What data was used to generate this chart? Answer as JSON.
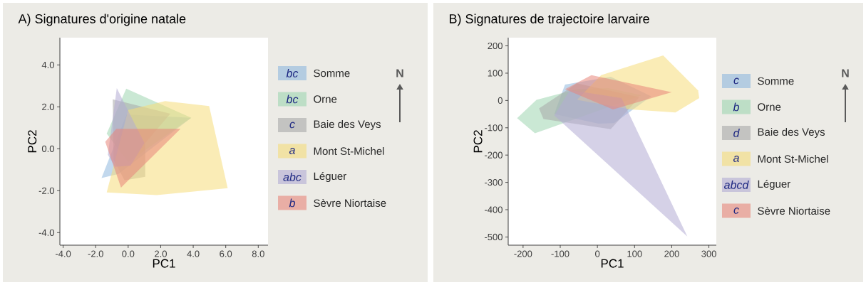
{
  "chart_data": [
    {
      "type": "area",
      "title": "A) Signatures d'origine natale",
      "xlabel": "PC1",
      "ylabel": "PC2",
      "legend": "right",
      "xlim": [
        -4.2,
        8.6
      ],
      "ylim": [
        -4.6,
        5.3
      ],
      "xticks": [
        {
          "value": -4,
          "label": "-4.0"
        },
        {
          "value": -2,
          "label": "-2.0"
        },
        {
          "value": 0,
          "label": "0.0"
        },
        {
          "value": 2,
          "label": "2.0"
        },
        {
          "value": 4,
          "label": "4.0"
        },
        {
          "value": 6,
          "label": "6.0"
        },
        {
          "value": 8,
          "label": "8.0"
        }
      ],
      "yticks": [
        {
          "value": -4,
          "label": "-4.0"
        },
        {
          "value": -2,
          "label": "-2.0"
        },
        {
          "value": 0,
          "label": "0.0"
        },
        {
          "value": 2,
          "label": "2.0"
        },
        {
          "value": 4,
          "label": "4.0"
        }
      ],
      "series": [
        {
          "name": "Somme",
          "color": "#8fb8de",
          "x": [
            -1.64,
            -0.1,
            3.88,
            -0.59
          ],
          "values": [
            -1.4,
            1.63,
            1.48,
            -1.2
          ]
        },
        {
          "name": "Orne",
          "color": "#9fd6b0",
          "x": [
            -0.12,
            3.88,
            0.0,
            -1.32
          ],
          "values": [
            2.87,
            1.48,
            -0.63,
            0.72
          ]
        },
        {
          "name": "Baie des Veys",
          "color": "#a8a8a8",
          "x": [
            -0.95,
            2.59,
            1.05,
            1.05,
            -0.22,
            -0.9
          ],
          "values": [
            2.36,
            1.67,
            0.27,
            -1.34,
            -1.51,
            -0.52
          ]
        },
        {
          "name": "Mont St-Michel",
          "color": "#f5dc7a",
          "x": [
            -1.32,
            1.76,
            6.12,
            4.98,
            2.27,
            0.0
          ],
          "values": [
            -2.08,
            -2.21,
            -1.88,
            2.04,
            2.27,
            1.85
          ]
        },
        {
          "name": "Léguer",
          "color": "#b3acd4",
          "x": [
            -0.7,
            1.0,
            0.15,
            -0.81,
            -1.25
          ],
          "values": [
            2.89,
            0.27,
            -0.8,
            -0.86,
            -0.29
          ]
        },
        {
          "name": "Sèvre Niortaise",
          "color": "#e8857a",
          "x": [
            -1.41,
            -0.73,
            3.22,
            -0.44
          ],
          "values": [
            0.33,
            0.95,
            0.95,
            -1.85
          ]
        }
      ],
      "annotations": [
        "bc",
        "bc",
        "c",
        "a",
        "abc",
        "b",
        "N"
      ]
    },
    {
      "type": "area",
      "title": "B) Signatures de trajectoire larvaire",
      "xlabel": "PC1",
      "ylabel": "PC2",
      "legend": "right",
      "xlim": [
        -240,
        320
      ],
      "ylim": [
        -530,
        230
      ],
      "xticks": [
        -200,
        -100,
        0,
        100,
        200,
        300
      ],
      "yticks": [
        -500,
        -400,
        -300,
        -200,
        -100,
        0,
        100,
        200
      ],
      "series": [
        {
          "name": "Somme",
          "color": "#8fb8de",
          "x": [
            -87,
            36,
            145,
            45,
            3,
            -116,
            -93
          ],
          "values": [
            58,
            87,
            15,
            -83,
            -85,
            -50,
            37
          ]
        },
        {
          "name": "Orne",
          "color": "#9fd6b0",
          "x": [
            -216,
            -164,
            -55,
            29,
            119,
            -168
          ],
          "values": [
            -65,
            2,
            41,
            45,
            19,
            -120
          ]
        },
        {
          "name": "Baie des Veys",
          "color": "#a8a8a8",
          "x": [
            -157,
            -55,
            113,
            36,
            -145
          ],
          "values": [
            -29,
            63,
            12,
            -105,
            -68
          ]
        },
        {
          "name": "Mont St-Michel",
          "color": "#f5dc7a",
          "x": [
            10,
            177,
            271,
            274,
            210,
            90,
            -55
          ],
          "values": [
            93,
            165,
            37,
            9,
            -44,
            -33,
            2
          ]
        },
        {
          "name": "Léguer",
          "color": "#b3acd4",
          "x": [
            -74,
            65,
            242,
            -116
          ],
          "values": [
            38,
            9,
            -498,
            -55
          ]
        },
        {
          "name": "Sèvre Niortaise",
          "color": "#e8857a",
          "x": [
            -16,
            200,
            42,
            -87
          ],
          "values": [
            93,
            30,
            -33,
            41
          ]
        }
      ],
      "annotations": [
        "c",
        "b",
        "d",
        "a",
        "abcd",
        "c",
        "N"
      ]
    }
  ]
}
